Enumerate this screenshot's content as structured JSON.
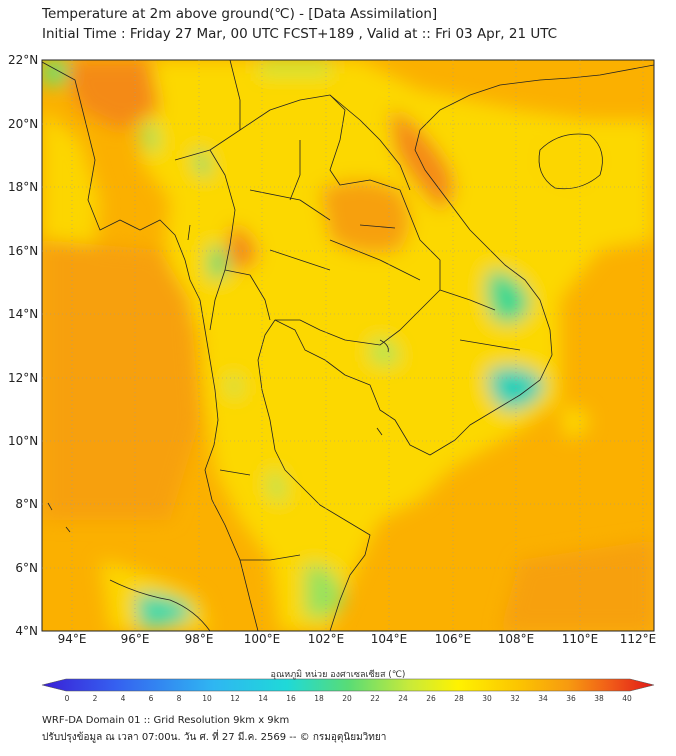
{
  "header": {
    "title": "Temperature at 2m above ground(℃) - [Data Assimilation]",
    "subtitle": "Initial Time : Friday 27 Mar, 00 UTC FCST+189 , Valid at :: Fri 03 Apr, 21 UTC"
  },
  "map": {
    "lat_labels": [
      "22°N",
      "20°N",
      "18°N",
      "16°N",
      "14°N",
      "12°N",
      "10°N",
      "8°N",
      "6°N",
      "4°N"
    ],
    "lon_labels": [
      "94°E",
      "96°E",
      "98°E",
      "100°E",
      "102°E",
      "104°E",
      "106°E",
      "108°E",
      "110°E",
      "112°E"
    ],
    "colors": {
      "warm_base": "#fbb000",
      "yellow": "#fcd800",
      "hot": "#f27a10",
      "cool_green": "#54d77e",
      "border": "#222222"
    }
  },
  "colorbar": {
    "title": "อุณหภูมิ หน่วย องศาเซลเซียส (℃)",
    "ticks": [
      "0",
      "2",
      "4",
      "6",
      "8",
      "10",
      "12",
      "14",
      "16",
      "18",
      "20",
      "22",
      "24",
      "26",
      "28",
      "30",
      "32",
      "34",
      "36",
      "38",
      "40"
    ]
  },
  "footer": {
    "line1": "WRF-DA Domain 01 :: Grid Resolution 9km x 9km",
    "line2": "ปรับปรุงข้อมูล ณ เวลา 07:00น. วัน ศ. ที่ 27 มี.ค. 2569 -- © กรมอุตุนิยมวิทยา"
  }
}
